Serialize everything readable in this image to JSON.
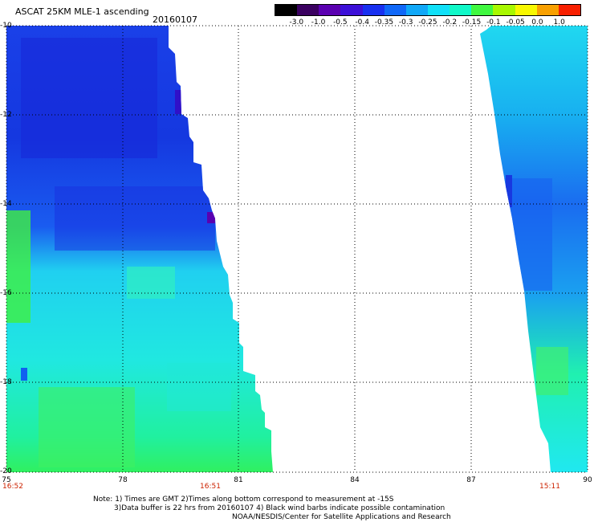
{
  "title": "ASCAT 25KM MLE-1 ascending",
  "date": "20160107",
  "colorbar": {
    "tick_labels": [
      "-3.0",
      "-1.0",
      "-0.5",
      "-0.4",
      "-0.35",
      "-0.3",
      "-0.25",
      "-0.2",
      "-0.15",
      "-0.1",
      "-0.05",
      "0.0",
      "1.0"
    ],
    "colors": [
      "#000000",
      "#3a0060",
      "#5a00b0",
      "#3c10d8",
      "#1830f0",
      "#1068f8",
      "#10a8f8",
      "#10e0f8",
      "#10f8c8",
      "#40f840",
      "#a8f800",
      "#f8f800",
      "#f8a000",
      "#f82000"
    ]
  },
  "map": {
    "lat_labels": [
      "-10",
      "-12",
      "-14",
      "-16",
      "-18",
      "-20"
    ],
    "lon_labels": [
      "75",
      "78",
      "81",
      "84",
      "87",
      "90"
    ],
    "time_labels": [
      {
        "text": "16:52",
        "lon": 75
      },
      {
        "text": "16:51",
        "lon": 81
      },
      {
        "text": "15:11",
        "lon": 89.1
      }
    ]
  },
  "notes": [
    "Note: 1) Times are GMT 2)Times along bottom correspond to measurement at -15S",
    "3)Data buffer is 22 hrs from 20160107 4) Black wind barbs indicate possible contamination",
    "NOAA/NESDIS/Center for Satellite Applications and Research"
  ]
}
